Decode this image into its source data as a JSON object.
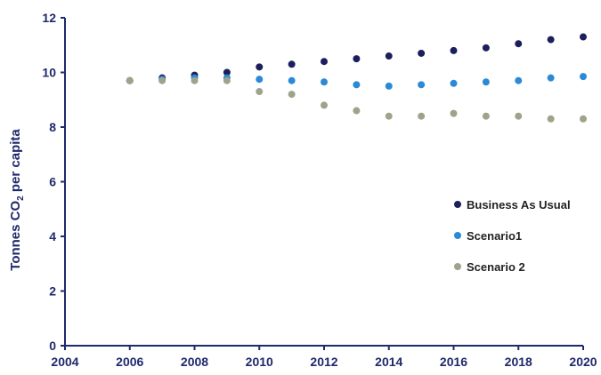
{
  "chart_data": {
    "type": "scatter",
    "title": "",
    "xlabel": "",
    "ylabel": {
      "prefix": "Tonnes CO",
      "subscript": "2",
      "suffix": " per capita"
    },
    "xlim": [
      2004,
      2020
    ],
    "ylim": [
      0,
      12
    ],
    "x_ticks": [
      "2004",
      "2006",
      "2008",
      "2010",
      "2012",
      "2014",
      "2016",
      "2018",
      "2020"
    ],
    "y_ticks": [
      "0",
      "2",
      "4",
      "6",
      "8",
      "10",
      "12"
    ],
    "grid": false,
    "legend_position": "right",
    "axis_color": "#1f2a6b",
    "series": [
      {
        "name": "Business As Usual",
        "color": "#1b1f5c",
        "x": [
          2006,
          2007,
          2008,
          2009,
          2010,
          2011,
          2012,
          2013,
          2014,
          2015,
          2016,
          2017,
          2018,
          2019,
          2020
        ],
        "y": [
          9.7,
          9.8,
          9.9,
          10.0,
          10.2,
          10.3,
          10.4,
          10.5,
          10.6,
          10.7,
          10.8,
          10.9,
          11.05,
          11.2,
          11.3
        ]
      },
      {
        "name": "Scenario1",
        "color": "#2b8ad6",
        "x": [
          2006,
          2007,
          2008,
          2009,
          2010,
          2011,
          2012,
          2013,
          2014,
          2015,
          2016,
          2017,
          2018,
          2019,
          2020
        ],
        "y": [
          9.7,
          9.75,
          9.8,
          9.8,
          9.75,
          9.7,
          9.65,
          9.55,
          9.5,
          9.55,
          9.6,
          9.65,
          9.7,
          9.8,
          9.85
        ]
      },
      {
        "name": "Scenario 2",
        "color": "#9fa38a",
        "x": [
          2006,
          2007,
          2008,
          2009,
          2010,
          2011,
          2012,
          2013,
          2014,
          2015,
          2016,
          2017,
          2018,
          2019,
          2020
        ],
        "y": [
          9.7,
          9.7,
          9.7,
          9.7,
          9.3,
          9.2,
          8.8,
          8.6,
          8.4,
          8.4,
          8.5,
          8.4,
          8.4,
          8.3,
          8.3
        ]
      }
    ]
  }
}
